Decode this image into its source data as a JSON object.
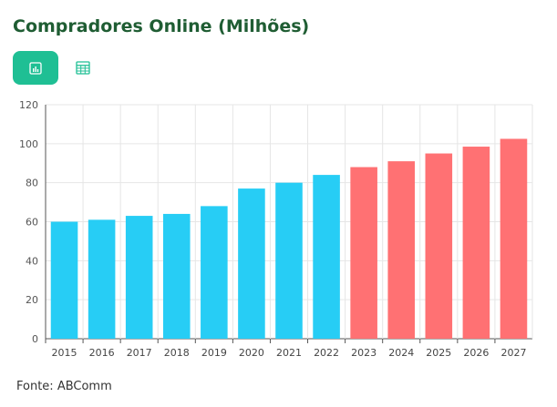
{
  "title": "Compradores Online (Milhões)",
  "toggle": {
    "chart_icon": "bar-chart-icon",
    "table_icon": "table-icon",
    "active_color": "#1fbf94"
  },
  "source": "Fonte: ABComm",
  "colors": {
    "historical": "#27cdf5",
    "projected": "#ff7173",
    "title": "#1f5d33"
  },
  "chart_data": {
    "type": "bar",
    "categories": [
      "2015",
      "2016",
      "2017",
      "2018",
      "2019",
      "2020",
      "2021",
      "2022",
      "2023",
      "2024",
      "2025",
      "2026",
      "2027"
    ],
    "values": [
      60,
      61,
      63,
      64,
      68,
      77,
      80,
      84,
      88,
      91,
      95,
      98.5,
      102.5
    ],
    "ylim": [
      0,
      120
    ],
    "yticks": [
      0,
      20,
      40,
      60,
      80,
      100,
      120
    ],
    "grid": true,
    "title": "Compradores Online (Milhões)",
    "xlabel": "",
    "ylabel": ""
  }
}
